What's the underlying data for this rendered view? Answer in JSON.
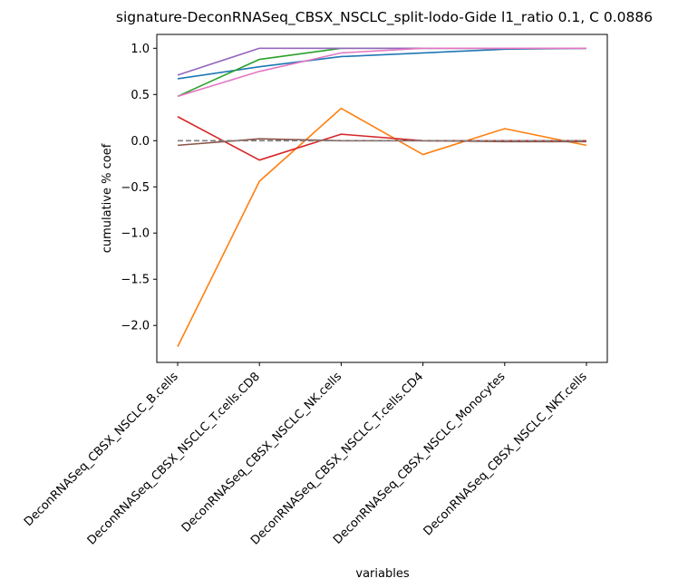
{
  "chart_data": {
    "type": "line",
    "title": "signature-DeconRNASeq_CBSX_NSCLC_split-lodo-Gide l1_ratio 0.1, C 0.0886",
    "xlabel": "variables",
    "ylabel": "cumulative % coef",
    "categories": [
      "DeconRNASeq_CBSX_NSCLC_B.cells",
      "DeconRNASeq_CBSX_NSCLC_T.cells.CD8",
      "DeconRNASeq_CBSX_NSCLC_NK.cells",
      "DeconRNASeq_CBSX_NSCLC_T.cells.CD4",
      "DeconRNASeq_CBSX_NSCLC_Monocytes",
      "DeconRNASeq_CBSX_NSCLC_NKT.cells"
    ],
    "yticks": [
      "−2.0",
      "−1.5",
      "−1.0",
      "−0.5",
      "0.0",
      "0.5",
      "1.0"
    ],
    "ylim": [
      -2.4,
      1.15
    ],
    "grid": false,
    "legend": "none",
    "series": [
      {
        "color": "#1f77b4",
        "dashed": false,
        "values": [
          0.67,
          0.8,
          0.91,
          0.95,
          0.99,
          1.0
        ]
      },
      {
        "color": "#ff7f0e",
        "dashed": false,
        "values": [
          -2.23,
          -0.44,
          0.35,
          -0.15,
          0.13,
          -0.05
        ]
      },
      {
        "color": "#2ca02c",
        "dashed": false,
        "values": [
          0.48,
          0.88,
          1.0,
          1.0,
          1.0,
          1.0
        ]
      },
      {
        "color": "#d62728",
        "dashed": false,
        "values": [
          0.26,
          -0.21,
          0.07,
          0.0,
          0.0,
          0.0
        ]
      },
      {
        "color": "#9467bd",
        "dashed": false,
        "values": [
          0.71,
          1.0,
          1.0,
          1.0,
          1.0,
          1.0
        ]
      },
      {
        "color": "#8c564b",
        "dashed": false,
        "values": [
          -0.05,
          0.02,
          0.0,
          0.0,
          -0.01,
          -0.01
        ]
      },
      {
        "color": "#e377c2",
        "dashed": false,
        "values": [
          0.48,
          0.75,
          0.95,
          1.0,
          1.0,
          1.0
        ]
      },
      {
        "color": "#7f7f7f",
        "dashed": true,
        "values": [
          0.0,
          0.0,
          0.0,
          0.0,
          0.0,
          0.0
        ]
      }
    ]
  }
}
